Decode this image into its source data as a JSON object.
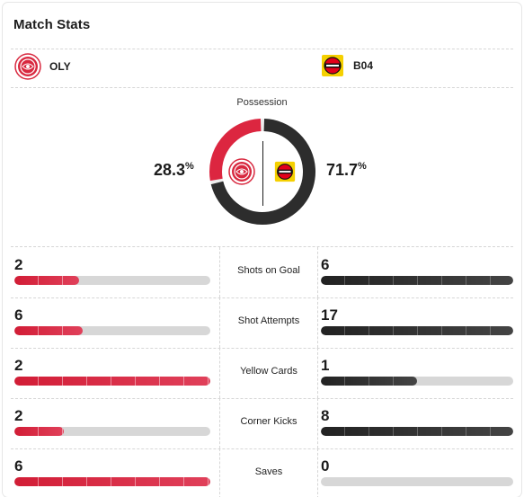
{
  "title": "Match Stats",
  "teams": {
    "home": {
      "abbr": "OLY",
      "color": "#dc2640"
    },
    "away": {
      "abbr": "B04",
      "color": "#2d2d2d"
    }
  },
  "possession": {
    "label": "Possession",
    "home_pct": "28.3",
    "away_pct": "71.7",
    "unit": "%",
    "home_value": 28.3,
    "away_value": 71.7
  },
  "stats": [
    {
      "label": "Shots on Goal",
      "home": "2",
      "away": "6",
      "home_fill": 0.33,
      "away_fill": 1.0
    },
    {
      "label": "Shot Attempts",
      "home": "6",
      "away": "17",
      "home_fill": 0.35,
      "away_fill": 1.0
    },
    {
      "label": "Yellow Cards",
      "home": "2",
      "away": "1",
      "home_fill": 1.0,
      "away_fill": 0.5
    },
    {
      "label": "Corner Kicks",
      "home": "2",
      "away": "8",
      "home_fill": 0.25,
      "away_fill": 1.0
    },
    {
      "label": "Saves",
      "home": "6",
      "away": "0",
      "home_fill": 1.0,
      "away_fill": 0.0
    }
  ]
}
